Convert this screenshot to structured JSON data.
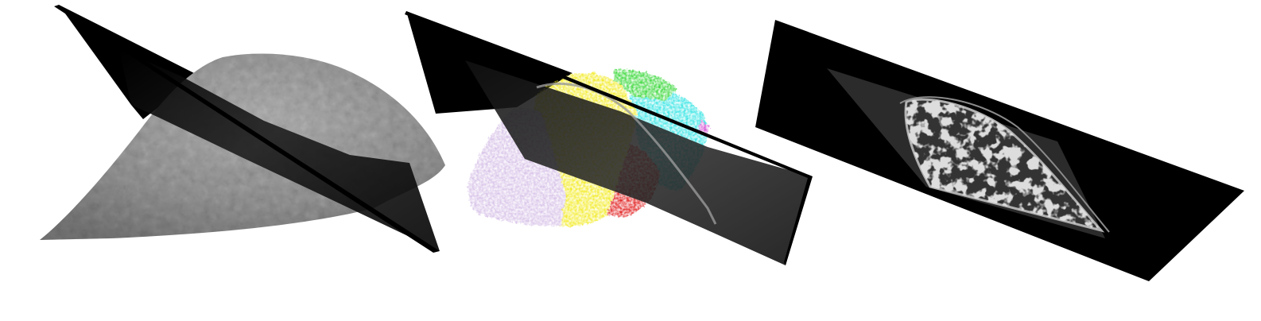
{
  "figure": {
    "panels": [
      {
        "id": "surface",
        "content": "bone-surface-render-with-slice-plane"
      },
      {
        "id": "segmentation",
        "content": "colored-segmented-regions-with-slice-plane"
      },
      {
        "id": "ct-slice",
        "content": "ct-cross-section-slice"
      }
    ],
    "colors": {
      "background": "#ffffff",
      "plane": "#000000",
      "bone_gray": "#8a8a8a",
      "segments": {
        "lavender": "#d4bde6",
        "yellow": "#f2ea1f",
        "red": "#e01818",
        "cyan": "#2fe3e3",
        "green": "#2dd62d",
        "magenta": "#d040d0"
      }
    }
  }
}
